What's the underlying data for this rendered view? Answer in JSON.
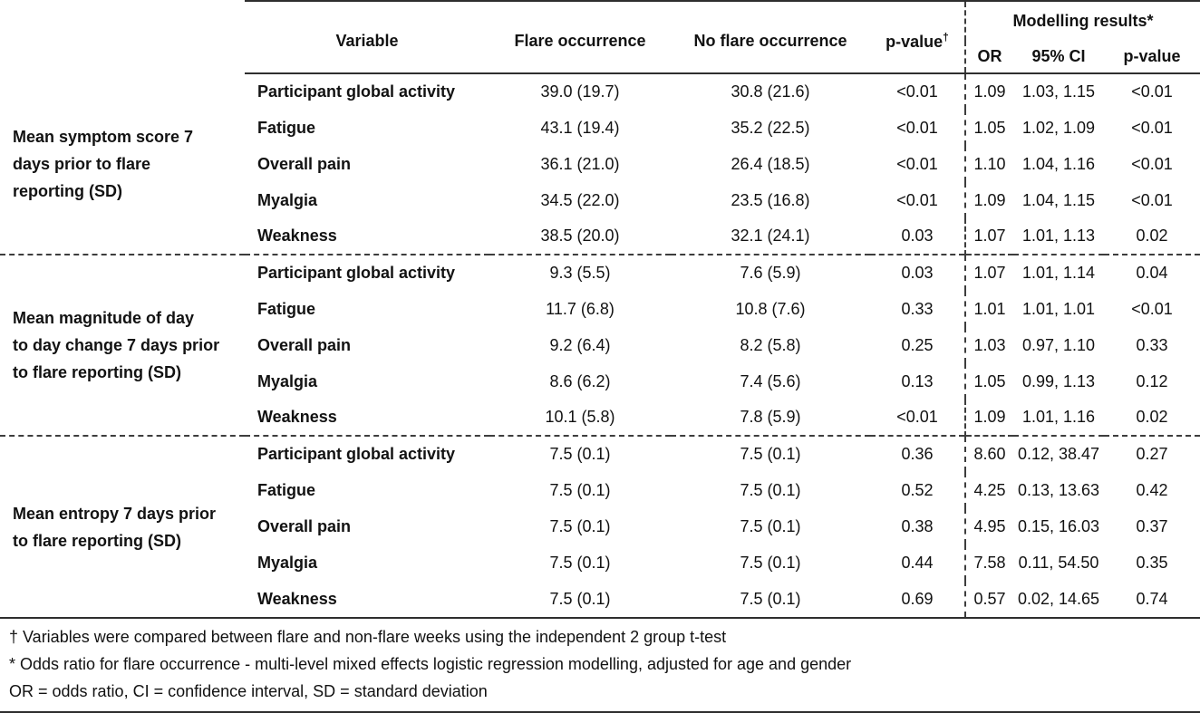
{
  "table": {
    "header": {
      "variable": "Variable",
      "flare": "Flare occurrence",
      "no_flare": "No flare occurrence",
      "p_value": "p-value",
      "p_value_sup": "†",
      "modelling_group": "Modelling results*",
      "or": "OR",
      "ci": "95% CI",
      "model_p": "p-value"
    },
    "sections": [
      {
        "label": "Mean symptom score 7\ndays prior to flare\nreporting (SD)",
        "rows": [
          {
            "variable": "Participant global activity",
            "flare": "39.0 (19.7)",
            "no_flare": "30.8 (21.6)",
            "p": "<0.01",
            "or": "1.09",
            "ci": "1.03, 1.15",
            "model_p": "<0.01"
          },
          {
            "variable": "Fatigue",
            "flare": "43.1 (19.4)",
            "no_flare": "35.2 (22.5)",
            "p": "<0.01",
            "or": "1.05",
            "ci": "1.02, 1.09",
            "model_p": "<0.01"
          },
          {
            "variable": "Overall pain",
            "flare": "36.1 (21.0)",
            "no_flare": "26.4 (18.5)",
            "p": "<0.01",
            "or": "1.10",
            "ci": "1.04, 1.16",
            "model_p": "<0.01"
          },
          {
            "variable": "Myalgia",
            "flare": "34.5 (22.0)",
            "no_flare": "23.5 (16.8)",
            "p": "<0.01",
            "or": "1.09",
            "ci": "1.04, 1.15",
            "model_p": "<0.01"
          },
          {
            "variable": "Weakness",
            "flare": "38.5 (20.0)",
            "no_flare": "32.1 (24.1)",
            "p": "0.03",
            "or": "1.07",
            "ci": "1.01, 1.13",
            "model_p": "0.02"
          }
        ]
      },
      {
        "label": "Mean magnitude of day\nto day change 7 days prior\nto flare reporting (SD)",
        "rows": [
          {
            "variable": "Participant global activity",
            "flare": "9.3 (5.5)",
            "no_flare": "7.6 (5.9)",
            "p": "0.03",
            "or": "1.07",
            "ci": "1.01, 1.14",
            "model_p": "0.04"
          },
          {
            "variable": "Fatigue",
            "flare": "11.7 (6.8)",
            "no_flare": "10.8 (7.6)",
            "p": "0.33",
            "or": "1.01",
            "ci": "1.01, 1.01",
            "model_p": "<0.01"
          },
          {
            "variable": "Overall pain",
            "flare": "9.2 (6.4)",
            "no_flare": "8.2 (5.8)",
            "p": "0.25",
            "or": "1.03",
            "ci": "0.97, 1.10",
            "model_p": "0.33"
          },
          {
            "variable": "Myalgia",
            "flare": "8.6 (6.2)",
            "no_flare": "7.4 (5.6)",
            "p": "0.13",
            "or": "1.05",
            "ci": "0.99, 1.13",
            "model_p": "0.12"
          },
          {
            "variable": "Weakness",
            "flare": "10.1 (5.8)",
            "no_flare": "7.8 (5.9)",
            "p": "<0.01",
            "or": "1.09",
            "ci": "1.01, 1.16",
            "model_p": "0.02"
          }
        ]
      },
      {
        "label": "Mean entropy 7 days prior\nto flare reporting (SD)",
        "rows": [
          {
            "variable": "Participant global activity",
            "flare": "7.5 (0.1)",
            "no_flare": "7.5 (0.1)",
            "p": "0.36",
            "or": "8.60",
            "ci": "0.12, 38.47",
            "model_p": "0.27"
          },
          {
            "variable": "Fatigue",
            "flare": "7.5 (0.1)",
            "no_flare": "7.5 (0.1)",
            "p": "0.52",
            "or": "4.25",
            "ci": "0.13, 13.63",
            "model_p": "0.42"
          },
          {
            "variable": "Overall pain",
            "flare": "7.5 (0.1)",
            "no_flare": "7.5 (0.1)",
            "p": "0.38",
            "or": "4.95",
            "ci": "0.15, 16.03",
            "model_p": "0.37"
          },
          {
            "variable": "Myalgia",
            "flare": "7.5 (0.1)",
            "no_flare": "7.5 (0.1)",
            "p": "0.44",
            "or": "7.58",
            "ci": "0.11, 54.50",
            "model_p": "0.35"
          },
          {
            "variable": "Weakness",
            "flare": "7.5 (0.1)",
            "no_flare": "7.5 (0.1)",
            "p": "0.69",
            "or": "0.57",
            "ci": "0.02, 14.65",
            "model_p": "0.74"
          }
        ]
      }
    ],
    "footnotes": [
      "† Variables were compared between flare and non-flare weeks using the independent 2 group t-test",
      "* Odds ratio for flare occurrence - multi-level mixed effects logistic regression modelling, adjusted for age and gender",
      "OR = odds ratio, CI = confidence interval, SD = standard deviation"
    ]
  }
}
